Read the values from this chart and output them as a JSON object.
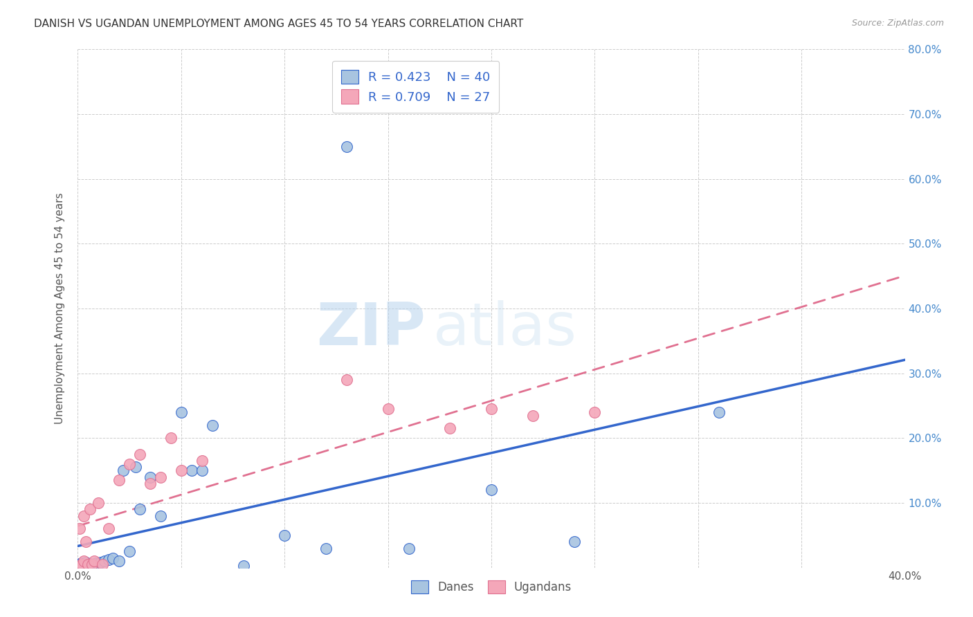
{
  "title": "DANISH VS UGANDAN UNEMPLOYMENT AMONG AGES 45 TO 54 YEARS CORRELATION CHART",
  "source": "Source: ZipAtlas.com",
  "ylabel": "Unemployment Among Ages 45 to 54 years",
  "xlim": [
    0.0,
    0.4
  ],
  "ylim": [
    0.0,
    0.8
  ],
  "xticks": [
    0.0,
    0.05,
    0.1,
    0.15,
    0.2,
    0.25,
    0.3,
    0.35,
    0.4
  ],
  "yticks": [
    0.0,
    0.1,
    0.2,
    0.3,
    0.4,
    0.5,
    0.6,
    0.7,
    0.8
  ],
  "danish_color": "#a8c4e0",
  "ugandan_color": "#f4a7b9",
  "danish_line_color": "#3366cc",
  "ugandan_line_color": "#e07090",
  "danish_R": 0.423,
  "danish_N": 40,
  "ugandan_R": 0.709,
  "ugandan_N": 27,
  "legend_label_danes": "Danes",
  "legend_label_ugandans": "Ugandans",
  "watermark_zip": "ZIP",
  "watermark_atlas": "atlas",
  "background_color": "#ffffff",
  "grid_color": "#cccccc",
  "title_color": "#333333",
  "right_axis_color": "#4488cc",
  "legend_text_color": "#3366cc",
  "danes_x": [
    0.001,
    0.001,
    0.001,
    0.002,
    0.002,
    0.002,
    0.003,
    0.003,
    0.004,
    0.004,
    0.005,
    0.005,
    0.006,
    0.007,
    0.008,
    0.009,
    0.01,
    0.011,
    0.013,
    0.015,
    0.017,
    0.02,
    0.022,
    0.025,
    0.028,
    0.03,
    0.035,
    0.04,
    0.05,
    0.055,
    0.06,
    0.065,
    0.08,
    0.1,
    0.12,
    0.13,
    0.16,
    0.2,
    0.24,
    0.31
  ],
  "danes_y": [
    0.002,
    0.004,
    0.006,
    0.003,
    0.005,
    0.007,
    0.004,
    0.006,
    0.003,
    0.008,
    0.005,
    0.002,
    0.006,
    0.004,
    0.003,
    0.007,
    0.005,
    0.008,
    0.01,
    0.012,
    0.015,
    0.01,
    0.15,
    0.025,
    0.155,
    0.09,
    0.14,
    0.08,
    0.24,
    0.15,
    0.15,
    0.22,
    0.003,
    0.05,
    0.03,
    0.65,
    0.03,
    0.12,
    0.04,
    0.24
  ],
  "ugandans_x": [
    0.001,
    0.001,
    0.002,
    0.003,
    0.003,
    0.004,
    0.005,
    0.006,
    0.007,
    0.008,
    0.01,
    0.012,
    0.015,
    0.02,
    0.025,
    0.03,
    0.035,
    0.04,
    0.045,
    0.05,
    0.06,
    0.13,
    0.15,
    0.18,
    0.2,
    0.22,
    0.25
  ],
  "ugandans_y": [
    0.003,
    0.06,
    0.005,
    0.01,
    0.08,
    0.04,
    0.005,
    0.09,
    0.005,
    0.01,
    0.1,
    0.005,
    0.06,
    0.135,
    0.16,
    0.175,
    0.13,
    0.14,
    0.2,
    0.15,
    0.165,
    0.29,
    0.245,
    0.215,
    0.245,
    0.235,
    0.24
  ]
}
